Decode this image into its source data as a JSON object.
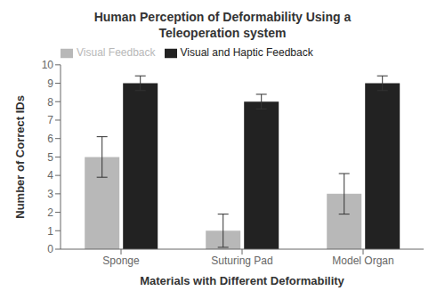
{
  "chart_data": {
    "type": "bar",
    "title": "Human Perception of Deformability Using a\nTeleoperation system",
    "xlabel": "Materials with Different Deformability",
    "ylabel": "Number of Correct IDs",
    "categories": [
      "Sponge",
      "Suturing Pad",
      "Model Organ"
    ],
    "series": [
      {
        "name": "Visual Feedback",
        "color": "#b8b8b8",
        "values": [
          5,
          1,
          3
        ],
        "errors": [
          1.1,
          0.9,
          1.1
        ]
      },
      {
        "name": "Visual and Haptic Feedback",
        "color": "#222222",
        "values": [
          9,
          8,
          9
        ],
        "errors": [
          0.4,
          0.4,
          0.4
        ]
      }
    ],
    "ylim": [
      0,
      10
    ],
    "yticks": [
      0,
      1,
      2,
      3,
      4,
      5,
      6,
      7,
      8,
      9,
      10
    ],
    "grid": false,
    "legend": "upper left"
  }
}
